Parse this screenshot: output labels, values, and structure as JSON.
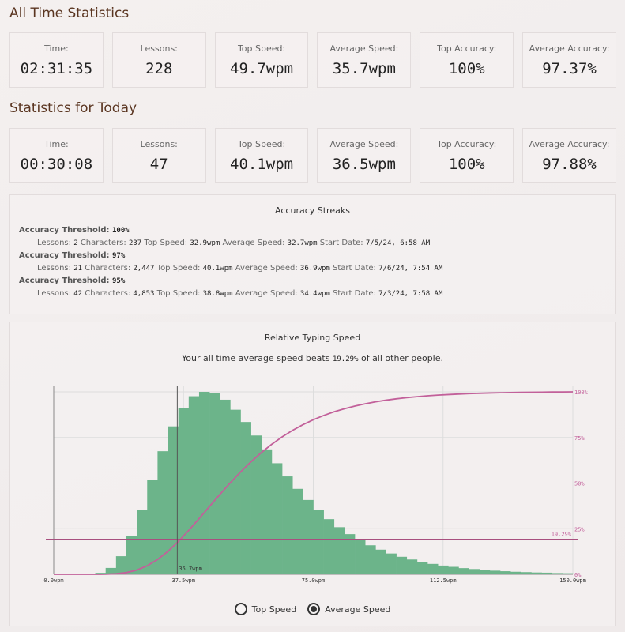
{
  "all_time": {
    "heading": "All Time Statistics",
    "stats": [
      {
        "label": "Time:",
        "value": "02:31:35"
      },
      {
        "label": "Lessons:",
        "value": "228"
      },
      {
        "label": "Top Speed:",
        "value": "49.7wpm"
      },
      {
        "label": "Average Speed:",
        "value": "35.7wpm"
      },
      {
        "label": "Top Accuracy:",
        "value": "100%"
      },
      {
        "label": "Average Accuracy:",
        "value": "97.37%"
      }
    ]
  },
  "today": {
    "heading": "Statistics for Today",
    "stats": [
      {
        "label": "Time:",
        "value": "00:30:08"
      },
      {
        "label": "Lessons:",
        "value": "47"
      },
      {
        "label": "Top Speed:",
        "value": "40.1wpm"
      },
      {
        "label": "Average Speed:",
        "value": "36.5wpm"
      },
      {
        "label": "Top Accuracy:",
        "value": "100%"
      },
      {
        "label": "Average Accuracy:",
        "value": "97.88%"
      }
    ]
  },
  "streaks": {
    "title": "Accuracy Streaks",
    "threshold_label": "Accuracy Threshold:",
    "lessons_label": "Lessons:",
    "characters_label": "Characters:",
    "top_speed_label": "Top Speed:",
    "avg_speed_label": "Average Speed:",
    "start_date_label": "Start Date:",
    "items": [
      {
        "threshold": "100%",
        "lessons": "2",
        "characters": "237",
        "top_speed": "32.9wpm",
        "avg_speed": "32.7wpm",
        "start_date": "7/5/24, 6:58 AM"
      },
      {
        "threshold": "97%",
        "lessons": "21",
        "characters": "2,447",
        "top_speed": "40.1wpm",
        "avg_speed": "36.9wpm",
        "start_date": "7/6/24, 7:54 AM"
      },
      {
        "threshold": "95%",
        "lessons": "42",
        "characters": "4,853",
        "top_speed": "38.8wpm",
        "avg_speed": "34.4wpm",
        "start_date": "7/3/24, 7:58 AM"
      }
    ]
  },
  "relative": {
    "title": "Relative Typing Speed",
    "summary_prefix": "Your all time average speed beats",
    "summary_value": "19.29%",
    "summary_suffix": "of all other people.",
    "options": [
      {
        "label": "Top Speed",
        "selected": false
      },
      {
        "label": "Average Speed",
        "selected": true
      }
    ]
  },
  "chart_data": {
    "type": "bar",
    "xlim": [
      0,
      150
    ],
    "x_ticks": [
      "0.0wpm",
      "37.5wpm",
      "75.0wpm",
      "112.5wpm",
      "150.0wpm"
    ],
    "x_tick_values": [
      0,
      37.5,
      75,
      112.5,
      150
    ],
    "y2_ticks": [
      "0%",
      "25%",
      "50%",
      "75%",
      "100%"
    ],
    "bin_width": 3,
    "bin_centers": [
      1.5,
      4.5,
      7.5,
      10.5,
      13.5,
      16.5,
      19.5,
      22.5,
      25.5,
      28.5,
      31.5,
      34.5,
      37.5,
      40.5,
      43.5,
      46.5,
      49.5,
      52.5,
      55.5,
      58.5,
      61.5,
      64.5,
      67.5,
      70.5,
      73.5,
      76.5,
      79.5,
      82.5,
      85.5,
      88.5,
      91.5,
      94.5,
      97.5,
      100.5,
      103.5,
      106.5,
      109.5,
      112.5,
      115.5,
      118.5,
      121.5,
      124.5,
      127.5,
      130.5,
      133.5,
      136.5,
      139.5,
      142.5,
      145.5,
      148.5
    ],
    "values": [
      0,
      0,
      0,
      0.1,
      0.8,
      3.5,
      9.9,
      20.8,
      35.3,
      51.5,
      67.4,
      81.0,
      91.2,
      97.5,
      99.9,
      99.1,
      95.6,
      90.1,
      83.4,
      76.0,
      68.4,
      60.8,
      53.6,
      46.8,
      40.7,
      35.1,
      30.2,
      25.8,
      22.0,
      18.7,
      15.9,
      13.5,
      11.4,
      9.6,
      8.1,
      6.8,
      5.7,
      4.8,
      4.1,
      3.4,
      2.9,
      2.4,
      2.0,
      1.7,
      1.4,
      1.2,
      1.0,
      0.9,
      0.7,
      0.6
    ],
    "cumulative_series": "percentile",
    "marker_x": 35.7,
    "marker_label": "35.7wpm",
    "marker_percent": 19.29,
    "marker_percent_label": "19.29%",
    "colors": {
      "bars": "#6cb48a",
      "cumulative": "#c2609a",
      "marker": "#555555",
      "grid": "#dddddd"
    },
    "grid": true
  }
}
